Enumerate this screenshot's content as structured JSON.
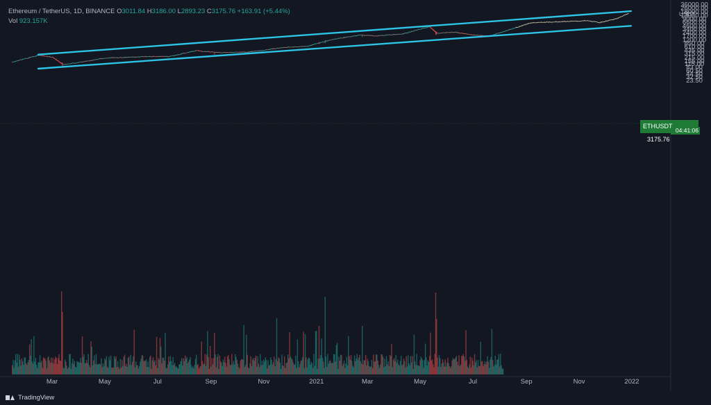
{
  "legend": {
    "symbol": "Ethereum / TetherUS, 1D, BINANCE",
    "open_label": "O",
    "open": "3011.84",
    "high_label": "H",
    "high": "3186.00",
    "low_label": "L",
    "low": "2893.23",
    "close_label": "C",
    "close": "3175.76",
    "change": "+163.91 (+5.44%)",
    "vol_label": "Vol",
    "vol": "923.157K"
  },
  "price_tag": {
    "symbol": "ETHUSDT",
    "price": "3175.76",
    "countdown": "04:41:06"
  },
  "axis_unit": "USDT",
  "brand": "TradingView",
  "colors": {
    "background": "#131722",
    "up": "#26a69a",
    "down": "#ef5350",
    "channel": "#2ec4e6",
    "candles_recent": "#c8c3a8"
  },
  "chart_data": {
    "type": "candlestick",
    "symbol": "ETHUSDT",
    "timeframe": "1D",
    "scale": "log",
    "y_ticks": [
      "36000.00",
      "26000.00",
      "18000.00",
      "13000.00",
      "9000.00",
      "6600.00",
      "4600.00",
      "3400.00",
      "2400.00",
      "1700.00",
      "1200.00",
      "850.00",
      "610.00",
      "435.00",
      "315.00",
      "215.00",
      "155.00",
      "115.00",
      "83.00",
      "60.50",
      "44.50",
      "32.50",
      "23.50"
    ],
    "x_ticks": [
      "Mar",
      "May",
      "Jul",
      "Sep",
      "Nov",
      "2021",
      "Mar",
      "May",
      "Jul",
      "Sep",
      "Nov",
      "2022"
    ],
    "price_path": [
      {
        "date": "2020-01-15",
        "price": 140
      },
      {
        "date": "2020-02-14",
        "price": 270
      },
      {
        "date": "2020-03-01",
        "price": 225
      },
      {
        "date": "2020-03-13",
        "price": 110
      },
      {
        "date": "2020-04-01",
        "price": 135
      },
      {
        "date": "2020-05-01",
        "price": 205
      },
      {
        "date": "2020-06-15",
        "price": 235
      },
      {
        "date": "2020-07-15",
        "price": 240
      },
      {
        "date": "2020-08-14",
        "price": 420
      },
      {
        "date": "2020-09-10",
        "price": 350
      },
      {
        "date": "2020-10-15",
        "price": 370
      },
      {
        "date": "2020-11-25",
        "price": 580
      },
      {
        "date": "2020-12-20",
        "price": 640
      },
      {
        "date": "2021-01-20",
        "price": 1250
      },
      {
        "date": "2021-02-20",
        "price": 1900
      },
      {
        "date": "2021-03-10",
        "price": 1750
      },
      {
        "date": "2021-04-10",
        "price": 2100
      },
      {
        "date": "2021-05-11",
        "price": 4300
      },
      {
        "date": "2021-05-20",
        "price": 2300
      },
      {
        "date": "2021-06-10",
        "price": 2500
      },
      {
        "date": "2021-07-01",
        "price": 1900
      },
      {
        "date": "2021-07-20",
        "price": 1750
      },
      {
        "date": "2021-08-10",
        "price": 3000
      },
      {
        "date": "2021-09-05",
        "price": 6200
      },
      {
        "date": "2021-10-01",
        "price": 6800
      },
      {
        "date": "2021-11-10",
        "price": 7600
      },
      {
        "date": "2021-11-25",
        "price": 6400
      },
      {
        "date": "2021-12-15",
        "price": 9500
      },
      {
        "date": "2021-12-28",
        "price": 16000
      }
    ],
    "channel_lines": [
      {
        "name": "upper",
        "from": {
          "date": "2020-02-14",
          "price": 285
        },
        "to": {
          "date": "2021-12-31",
          "price": 19000
        }
      },
      {
        "name": "lower",
        "from": {
          "date": "2020-02-14",
          "price": 73
        },
        "to": {
          "date": "2021-12-31",
          "price": 4600
        }
      }
    ],
    "grid": false
  }
}
